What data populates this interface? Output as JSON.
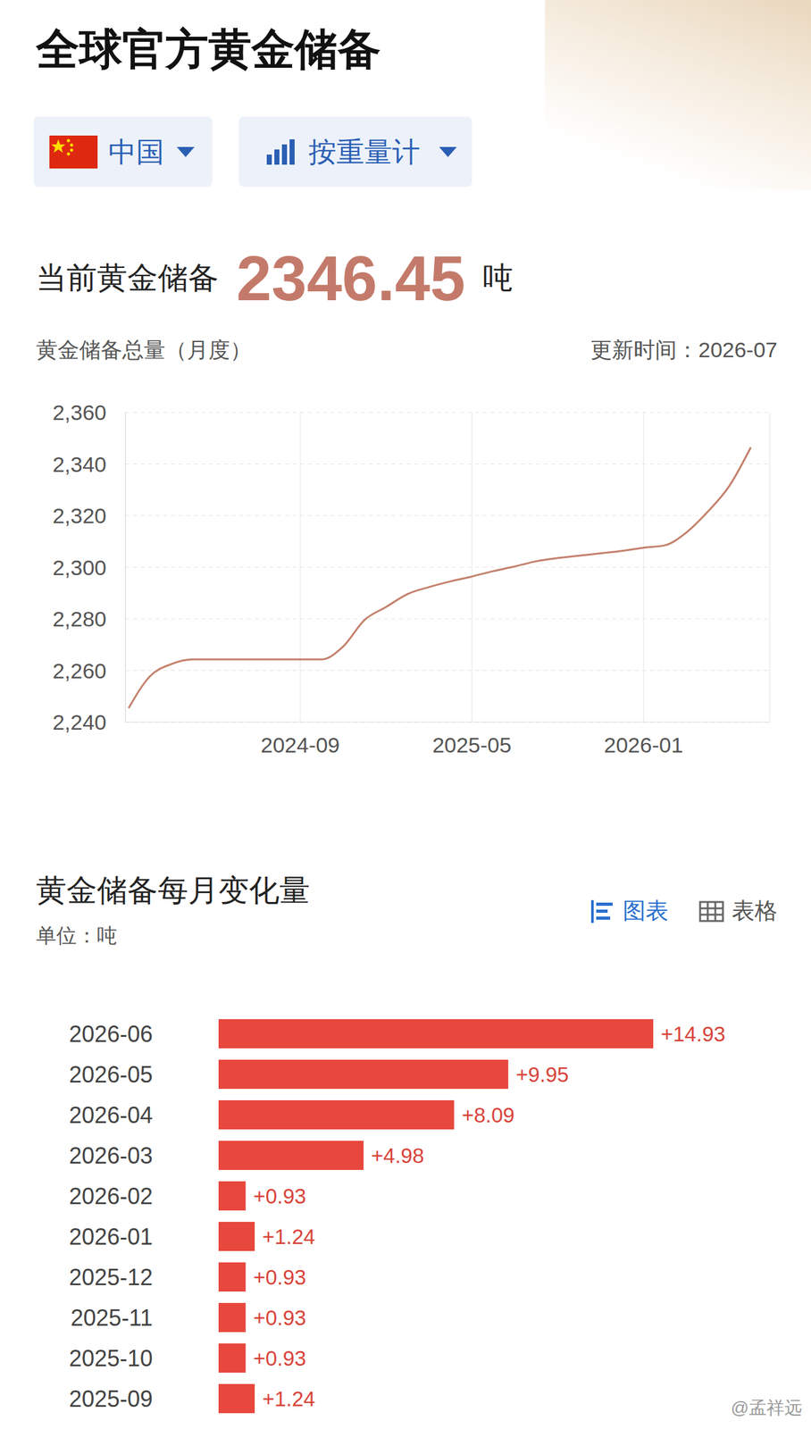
{
  "header": {
    "title": "全球官方黄金储备",
    "selectors": [
      "中国",
      "按重量计"
    ]
  },
  "summary": {
    "label": "当前黄金储备",
    "value": 2346.45,
    "unit": "吨"
  },
  "chart_data": [
    {
      "type": "line",
      "title": "黄金储备总量（月度）",
      "subtitle": "更新时间：2026-07",
      "categories": [
        null,
        null,
        null,
        null,
        null,
        null,
        null,
        null,
        "2024-09",
        null,
        null,
        null,
        null,
        null,
        null,
        null,
        "2025-05",
        null,
        null,
        null,
        null,
        null,
        null,
        null,
        "2026-01",
        null,
        null,
        null,
        null,
        null
      ],
      "values": [
        2245.4,
        2257.8,
        2262.5,
        2264.3,
        2264.3,
        2264.3,
        2264.3,
        2264.3,
        2264.3,
        2264.3,
        2269.3,
        2279.6,
        2284.6,
        2289.6,
        2292.3,
        2294.5,
        2296.4,
        2298.5,
        2300.3,
        2302.3,
        2303.54,
        2304.47,
        2305.4,
        2306.33,
        2307.57,
        2308.5,
        2313.48,
        2321.57,
        2331.52,
        2346.45
      ],
      "color": "#c4806c",
      "ylim": [
        2240,
        2360
      ],
      "yticks": [
        {
          "value": 2240,
          "label": "2,240"
        },
        {
          "value": 2260,
          "label": "2,260"
        },
        {
          "value": 2280,
          "label": "2,280"
        },
        {
          "value": 2300,
          "label": "2,300"
        },
        {
          "value": 2320,
          "label": "2,320"
        },
        {
          "value": 2340,
          "label": "2,340"
        },
        {
          "value": 2360,
          "label": "2,360"
        }
      ],
      "grid": true
    },
    {
      "type": "bar",
      "orientation": "horizontal",
      "title": "黄金储备每月变化量",
      "subtitle": "单位：吨",
      "view_options": [
        "图表",
        "表格"
      ],
      "categories": [
        "2026-06",
        "2026-05",
        "2026-04",
        "2026-03",
        "2026-02",
        "2026-01",
        "2025-12",
        "2025-11",
        "2025-10",
        "2025-09"
      ],
      "values": [
        14.93,
        9.95,
        8.09,
        4.98,
        0.93,
        1.24,
        0.93,
        0.93,
        0.93,
        1.24
      ],
      "value_labels": [
        "+14.93",
        "+9.95",
        "+8.09",
        "+4.98",
        "+0.93",
        "+1.24",
        "+0.93",
        "+0.93",
        "+0.93",
        "+1.24"
      ],
      "data_labels": true,
      "color": "#e8473d",
      "xlim": [
        0,
        19
      ],
      "tick_labels": "y"
    }
  ],
  "footer": {
    "source": "@孟祥远"
  }
}
